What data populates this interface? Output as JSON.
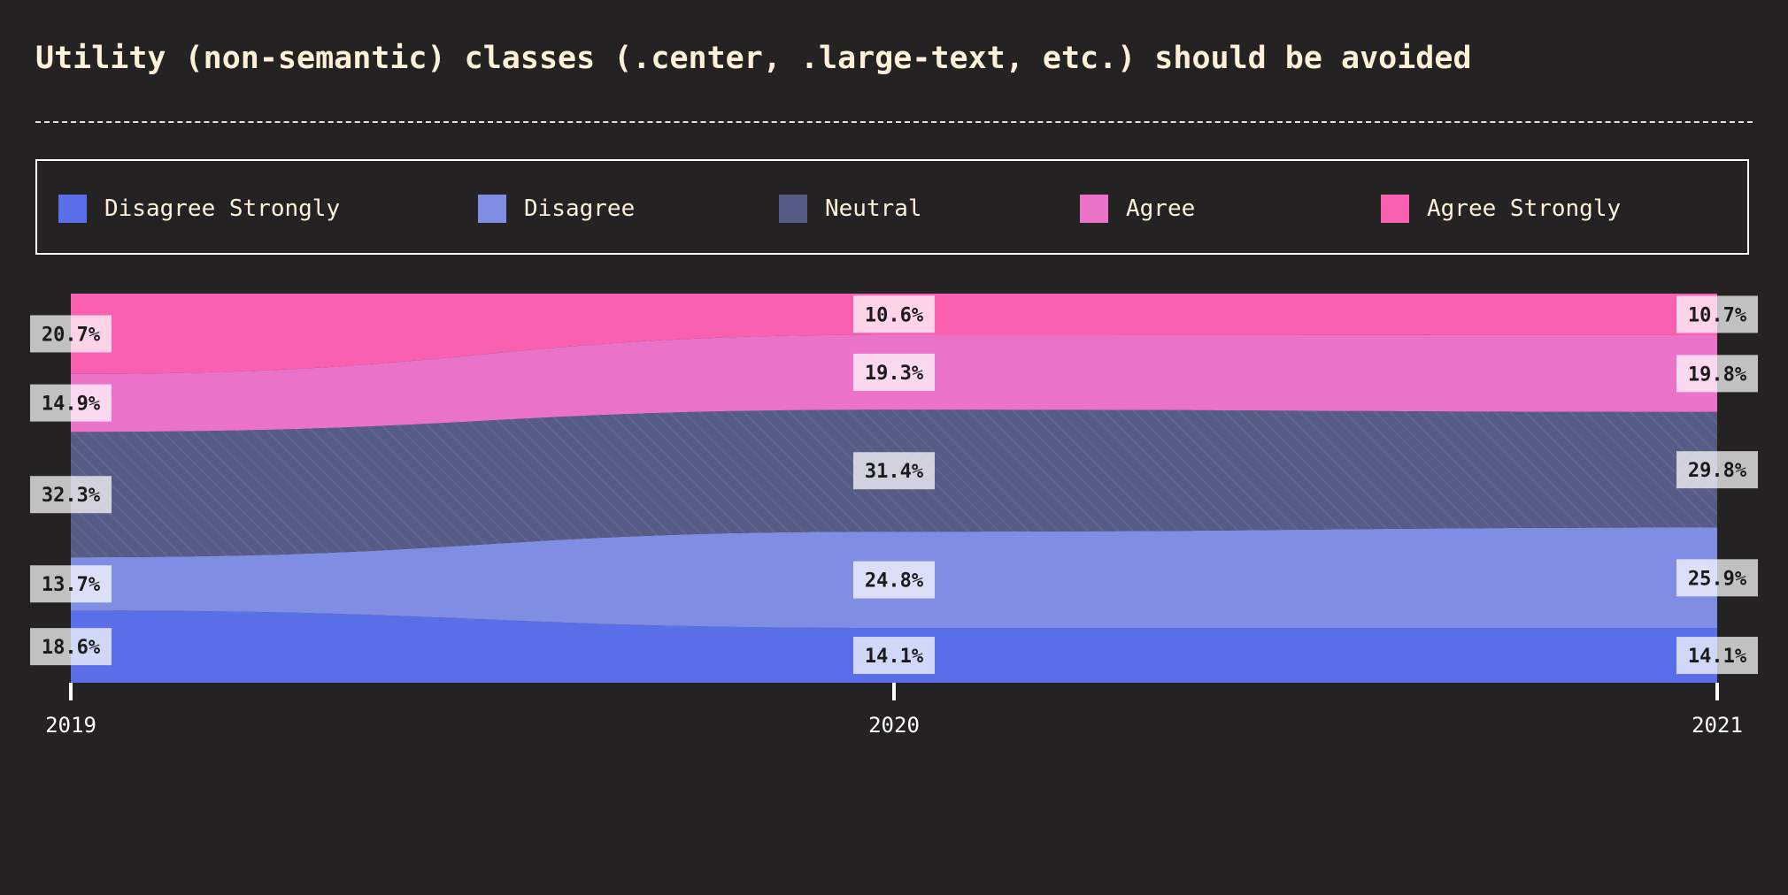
{
  "title": "Utility (non-semantic) classes (.center, .large-text, etc.) should be avoided",
  "legend": {
    "items": [
      {
        "label": "Disagree Strongly",
        "color": "#5a6fe7"
      },
      {
        "label": "Disagree",
        "color": "#7f8ee3"
      },
      {
        "label": "Neutral",
        "color": "#565c85"
      },
      {
        "label": "Agree",
        "color": "#ea73c9"
      },
      {
        "label": "Agree Strongly",
        "color": "#f960af"
      }
    ]
  },
  "chart_data": {
    "type": "area",
    "stacked": true,
    "normalized": true,
    "title": "Utility (non-semantic) classes (.center, .large-text, etc.) should be avoided",
    "xlabel": "",
    "ylabel": "",
    "x": [
      "2019",
      "2020",
      "2021"
    ],
    "ylim": [
      0,
      100
    ],
    "grid": false,
    "legend_position": "top",
    "series": [
      {
        "name": "Disagree Strongly",
        "color": "#5a6fe7",
        "values": [
          18.6,
          14.1,
          14.1
        ],
        "labels": [
          "18.6%",
          "14.1%",
          "14.1%"
        ]
      },
      {
        "name": "Disagree",
        "color": "#7f8ee3",
        "values": [
          13.7,
          24.8,
          25.9
        ],
        "labels": [
          "13.7%",
          "24.8%",
          "25.9%"
        ]
      },
      {
        "name": "Neutral",
        "color": "#565c85",
        "values": [
          32.3,
          31.4,
          29.8
        ],
        "labels": [
          "32.3%",
          "31.4%",
          "29.8%"
        ]
      },
      {
        "name": "Agree",
        "color": "#ea73c9",
        "values": [
          14.9,
          19.3,
          19.8
        ],
        "labels": [
          "14.9%",
          "19.3%",
          "19.8%"
        ]
      },
      {
        "name": "Agree Strongly",
        "color": "#f960af",
        "values": [
          20.7,
          10.6,
          10.7
        ],
        "labels": [
          "20.7%",
          "10.6%",
          "10.7%"
        ]
      }
    ]
  }
}
